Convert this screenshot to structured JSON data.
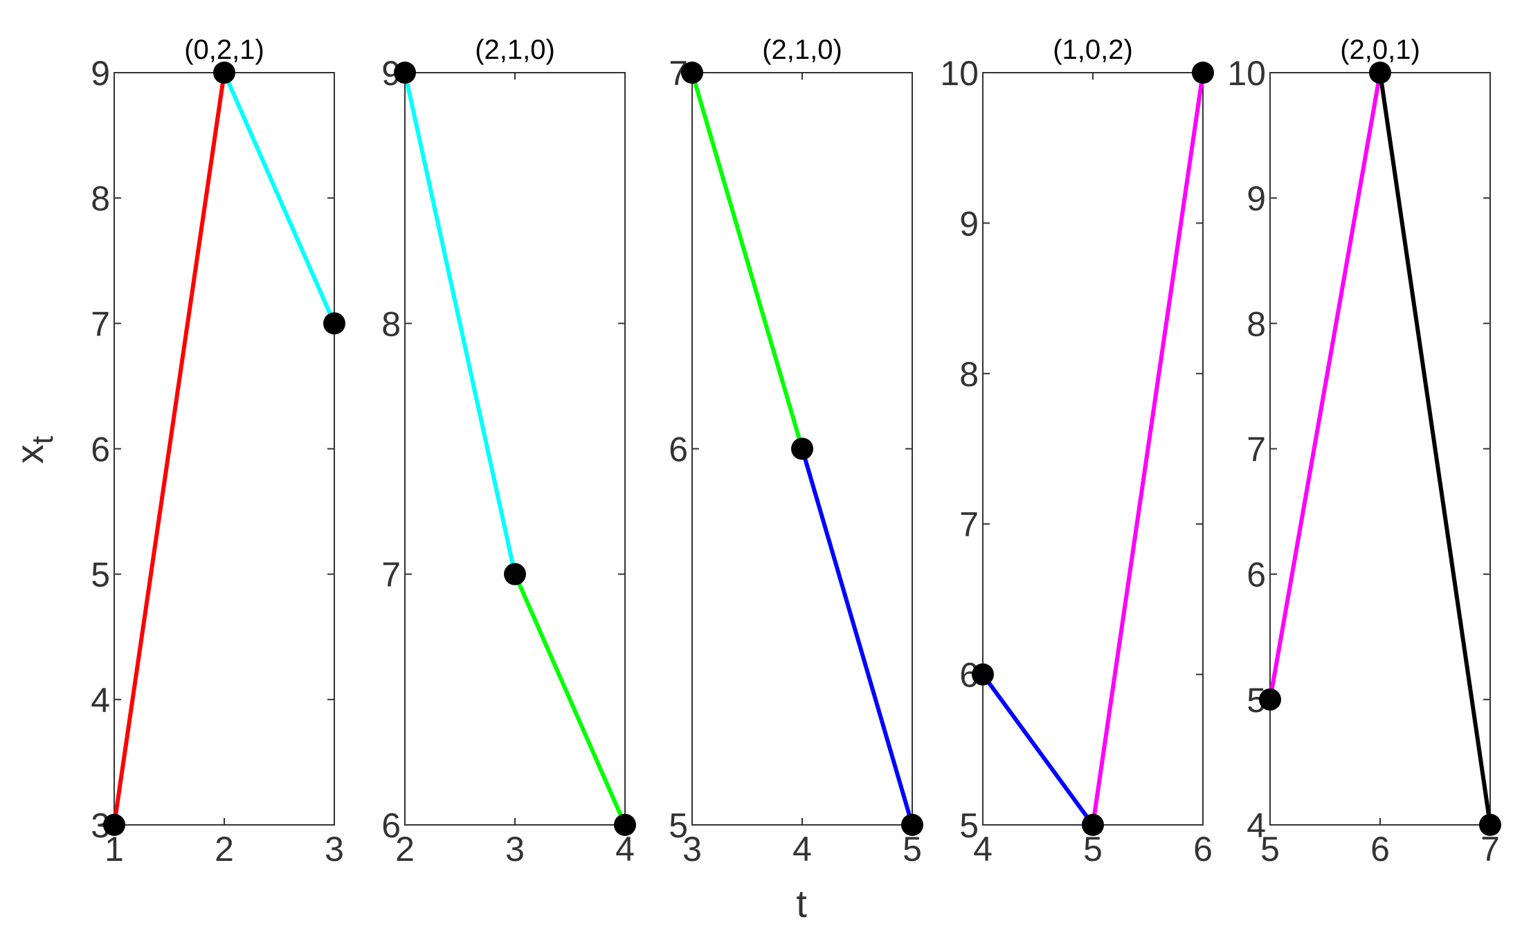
{
  "chart_data": {
    "type": "line",
    "xlabel": "t",
    "ylabel_main": "x",
    "ylabel_sub": "t",
    "panels": [
      {
        "title": "(0,2,1)",
        "xlim": [
          1,
          3
        ],
        "ylim": [
          3,
          9
        ],
        "xticks": [
          "1",
          "2",
          "3"
        ],
        "yticks": [
          "3",
          "4",
          "5",
          "6",
          "7",
          "8",
          "9"
        ],
        "points": [
          [
            1,
            3
          ],
          [
            2,
            9
          ],
          [
            3,
            7
          ]
        ],
        "segment_colors": [
          "#ff0000",
          "#00ffff"
        ]
      },
      {
        "title": "(2,1,0)",
        "xlim": [
          2,
          4
        ],
        "ylim": [
          6,
          9
        ],
        "xticks": [
          "2",
          "3",
          "4"
        ],
        "yticks": [
          "6",
          "7",
          "8",
          "9"
        ],
        "points": [
          [
            2,
            9
          ],
          [
            3,
            7
          ],
          [
            4,
            6
          ]
        ],
        "segment_colors": [
          "#00ffff",
          "#00ff00"
        ]
      },
      {
        "title": "(2,1,0)",
        "xlim": [
          3,
          5
        ],
        "ylim": [
          5,
          7
        ],
        "xticks": [
          "3",
          "4",
          "5"
        ],
        "yticks": [
          "5",
          "6",
          "7"
        ],
        "points": [
          [
            3,
            7
          ],
          [
            4,
            6
          ],
          [
            5,
            5
          ]
        ],
        "segment_colors": [
          "#00ff00",
          "#0000ff"
        ]
      },
      {
        "title": "(1,0,2)",
        "xlim": [
          4,
          6
        ],
        "ylim": [
          5,
          10
        ],
        "xticks": [
          "4",
          "5",
          "6"
        ],
        "yticks": [
          "5",
          "6",
          "7",
          "8",
          "9",
          "10"
        ],
        "points": [
          [
            4,
            6
          ],
          [
            5,
            5
          ],
          [
            6,
            10
          ]
        ],
        "segment_colors": [
          "#0000ff",
          "#ff00ff"
        ]
      },
      {
        "title": "(2,0,1)",
        "xlim": [
          5,
          7
        ],
        "ylim": [
          4,
          10
        ],
        "xticks": [
          "5",
          "6",
          "7"
        ],
        "yticks": [
          "4",
          "5",
          "6",
          "7",
          "8",
          "9",
          "10"
        ],
        "points": [
          [
            5,
            5
          ],
          [
            6,
            10
          ],
          [
            7,
            4
          ]
        ],
        "segment_colors": [
          "#ff00ff",
          "#000000"
        ]
      }
    ]
  }
}
